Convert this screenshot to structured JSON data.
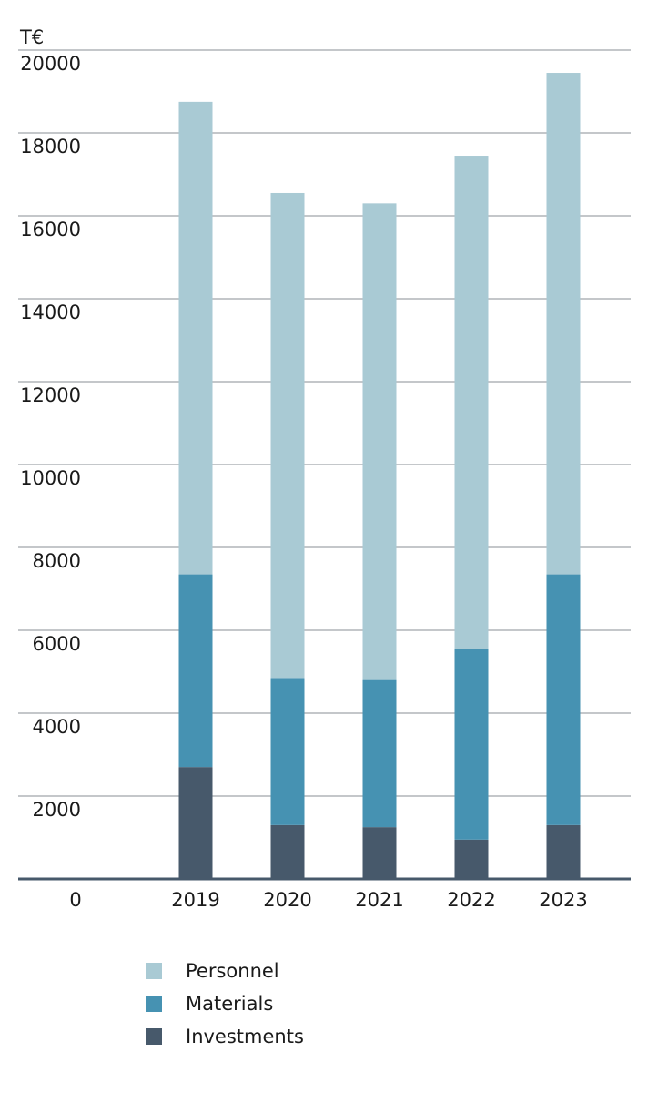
{
  "chart_data": {
    "type": "bar",
    "stacked": true,
    "unit_label": "T€",
    "categories": [
      "2019",
      "2020",
      "2021",
      "2022",
      "2023"
    ],
    "series": [
      {
        "name": "Investments",
        "color": "#47596b",
        "values": [
          2700,
          1300,
          1250,
          950,
          1300
        ]
      },
      {
        "name": "Materials",
        "color": "#4692b2",
        "values": [
          4650,
          3550,
          3550,
          4600,
          6050
        ]
      },
      {
        "name": "Personnel",
        "color": "#a9cad4",
        "values": [
          11400,
          11700,
          11500,
          11900,
          12100
        ]
      }
    ],
    "y_ticks": [
      "0",
      "2000",
      "4000",
      "6000",
      "8000",
      "10000",
      "12000",
      "14000",
      "16000",
      "18000",
      "20000"
    ],
    "ylim": [
      0,
      20000
    ],
    "grid": true,
    "legend_position": "bottom-left"
  },
  "legend": [
    {
      "label": "Personnel",
      "color": "#a9cad4"
    },
    {
      "label": "Materials",
      "color": "#4692b2"
    },
    {
      "label": "Investments",
      "color": "#47596b"
    }
  ]
}
